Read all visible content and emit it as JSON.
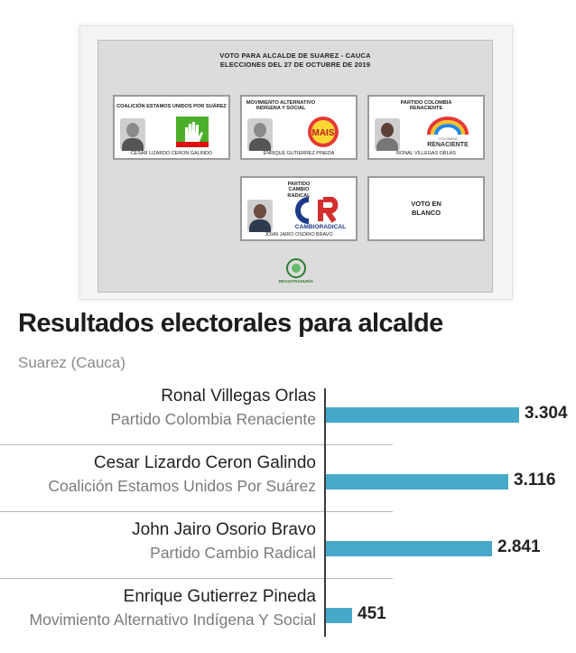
{
  "ballot": {
    "title_line1": "VOTO PARA ALCALDE DE SUAREZ - CAUCA",
    "title_line2": "ELECCIONES DEL 27 DE OCTUBRE DE 2019",
    "candidates": [
      {
        "party": "COALICIÓN ESTAMOS UNIDOS POR SUÁREZ",
        "name": "CESAR LIZARDO CERON GALINDO"
      },
      {
        "party": "MOVIMIENTO ALTERNATIVO INDÍGENA Y SOCIAL",
        "name": "ENRIQUE  GUTIERREZ PINEDA",
        "logo_text": "MAIS"
      },
      {
        "party": "PARTIDO COLOMBIA RENACIENTE",
        "name": "RONAL  VILLEGAS ORLAS",
        "logo_text": "RENACIENTE",
        "logo_small": "COLOMBIA"
      },
      {
        "party": "PARTIDO CAMBIO RADICAL",
        "name": "JOHN JAIRO OSORIO BRAVO",
        "logo_text": "CAMBIORADICAL"
      }
    ],
    "blank_vote": "VOTO EN\nBLANCO",
    "registry_label": "REGISTRADURÍA"
  },
  "title": "Resultados electorales para alcalde",
  "subtitle": "Suarez (Cauca)",
  "chart_data": {
    "type": "bar",
    "orientation": "horizontal",
    "categories": [
      "Ronal Villegas Orlas",
      "Cesar Lizardo Ceron Galindo",
      "John Jairo Osorio Bravo",
      "Enrique Gutierrez Pineda"
    ],
    "parties": [
      "Partido Colombia Renaciente",
      "Coalición Estamos Unidos Por Suárez",
      "Partido Cambio Radical",
      "Movimiento Alternativo Indígena Y Social"
    ],
    "values": [
      3304,
      3116,
      2841,
      451
    ],
    "value_labels": [
      "3.304",
      "3.116",
      "2.841",
      "451"
    ],
    "xlim": [
      0,
      3304
    ],
    "grid": false,
    "colors": {
      "bar": "#47a9c9"
    }
  }
}
